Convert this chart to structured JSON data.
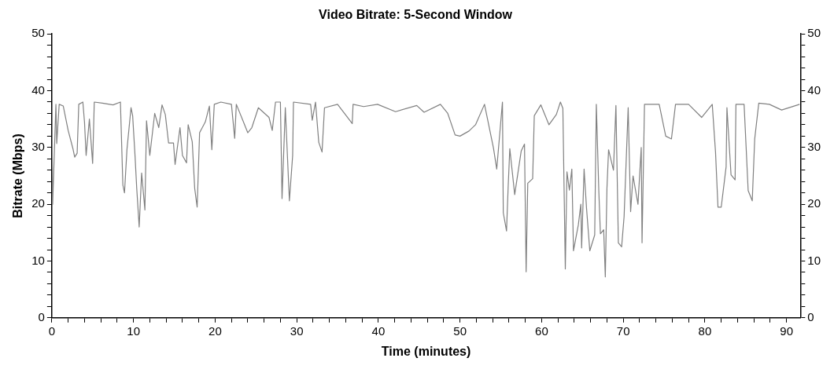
{
  "chart_data": {
    "type": "line",
    "title": "Video Bitrate: 5-Second Window",
    "xlabel": "Time (minutes)",
    "ylabel": "Bitrate (Mbps)",
    "xlim": [
      0,
      91.7
    ],
    "xticks": [
      0,
      {
        "value": 2,
        "label": null
      },
      {
        "value": 4,
        "label": null
      },
      {
        "value": 6,
        "label": null
      },
      {
        "value": 8,
        "label": null
      },
      10,
      {
        "value": 12,
        "label": null
      },
      {
        "value": 14,
        "label": null
      },
      {
        "value": 16,
        "label": null
      },
      {
        "value": 18,
        "label": null
      },
      20,
      {
        "value": 22,
        "label": null
      },
      {
        "value": 24,
        "label": null
      },
      {
        "value": 26,
        "label": null
      },
      {
        "value": 28,
        "label": null
      },
      30,
      {
        "value": 32,
        "label": null
      },
      {
        "value": 34,
        "label": null
      },
      {
        "value": 36,
        "label": null
      },
      {
        "value": 38,
        "label": null
      },
      40,
      {
        "value": 42,
        "label": null
      },
      {
        "value": 44,
        "label": null
      },
      {
        "value": 46,
        "label": null
      },
      {
        "value": 48,
        "label": null
      },
      50,
      {
        "value": 52,
        "label": null
      },
      {
        "value": 54,
        "label": null
      },
      {
        "value": 56,
        "label": null
      },
      {
        "value": 58,
        "label": null
      },
      60,
      {
        "value": 62,
        "label": null
      },
      {
        "value": 64,
        "label": null
      },
      {
        "value": 66,
        "label": null
      },
      {
        "value": 68,
        "label": null
      },
      70,
      {
        "value": 72,
        "label": null
      },
      {
        "value": 74,
        "label": null
      },
      {
        "value": 76,
        "label": null
      },
      {
        "value": 78,
        "label": null
      },
      80,
      {
        "value": 82,
        "label": null
      },
      {
        "value": 84,
        "label": null
      },
      {
        "value": 86,
        "label": null
      },
      {
        "value": 88,
        "label": null
      },
      90
    ],
    "ylim": [
      0,
      50
    ],
    "yticks": [
      0,
      {
        "value": 2,
        "label": null
      },
      {
        "value": 4,
        "label": null
      },
      {
        "value": 6,
        "label": null
      },
      {
        "value": 8,
        "label": null
      },
      10,
      {
        "value": 12,
        "label": null
      },
      {
        "value": 14,
        "label": null
      },
      {
        "value": 16,
        "label": null
      },
      {
        "value": 18,
        "label": null
      },
      20,
      {
        "value": 22,
        "label": null
      },
      {
        "value": 24,
        "label": null
      },
      {
        "value": 26,
        "label": null
      },
      {
        "value": 28,
        "label": null
      },
      30,
      {
        "value": 32,
        "label": null
      },
      {
        "value": 34,
        "label": null
      },
      {
        "value": 36,
        "label": null
      },
      {
        "value": 38,
        "label": null
      },
      40,
      {
        "value": 42,
        "label": null
      },
      {
        "value": 44,
        "label": null
      },
      {
        "value": 46,
        "label": null
      },
      {
        "value": 48,
        "label": null
      },
      50
    ],
    "y2lim": [
      0,
      50
    ],
    "y2ticks": [
      0,
      {
        "value": 2,
        "label": null
      },
      {
        "value": 4,
        "label": null
      },
      {
        "value": 6,
        "label": null
      },
      {
        "value": 8,
        "label": null
      },
      10,
      {
        "value": 12,
        "label": null
      },
      {
        "value": 14,
        "label": null
      },
      {
        "value": 16,
        "label": null
      },
      {
        "value": 18,
        "label": null
      },
      20,
      {
        "value": 22,
        "label": null
      },
      {
        "value": 24,
        "label": null
      },
      {
        "value": 26,
        "label": null
      },
      {
        "value": 28,
        "label": null
      },
      30,
      {
        "value": 32,
        "label": null
      },
      {
        "value": 34,
        "label": null
      },
      {
        "value": 36,
        "label": null
      },
      {
        "value": 38,
        "label": null
      },
      40,
      {
        "value": 42,
        "label": null
      },
      {
        "value": 44,
        "label": null
      },
      {
        "value": 46,
        "label": null
      },
      {
        "value": 48,
        "label": null
      },
      50
    ],
    "grid": false,
    "legend": false,
    "marker": "none",
    "line_style": "solid",
    "series": [
      {
        "color": "#808080",
        "x": [
          0,
          0.1,
          0.5,
          0.6,
          0.9,
          1.4,
          2.0,
          2.6,
          2.8,
          3.1,
          3.3,
          3.8,
          4.0,
          4.2,
          4.6,
          5.0,
          5.2,
          6.2,
          7.5,
          8.4,
          8.7,
          8.9,
          9.2,
          9.7,
          9.9,
          10.2,
          10.4,
          10.7,
          11.0,
          11.4,
          11.6,
          12.0,
          12.6,
          13.1,
          13.5,
          13.9,
          14.3,
          14.9,
          15.1,
          15.7,
          16.0,
          16.5,
          16.7,
          17.2,
          17.5,
          17.8,
          18.1,
          18.8,
          19.3,
          19.6,
          19.9,
          20.7,
          22.0,
          22.4,
          22.6,
          23.5,
          24.0,
          24.5,
          25.3,
          26.6,
          27.0,
          27.4,
          28.0,
          28.2,
          28.6,
          29.1,
          29.5,
          29.6,
          31.7,
          31.9,
          32.3,
          32.7,
          33.1,
          33.4,
          35.0,
          36.8,
          36.9,
          38.2,
          39.9,
          42.1,
          44.7,
          45.6,
          47.6,
          48.5,
          49.4,
          50.0,
          51.1,
          51.9,
          53.0,
          54.1,
          54.5,
          55.2,
          55.3,
          55.7,
          55.9,
          56.1,
          56.7,
          57.5,
          57.9,
          58.1,
          58.3,
          58.9,
          59.1,
          59.9,
          60.9,
          61.8,
          62.3,
          62.6,
          62.9,
          63.1,
          63.4,
          63.7,
          63.9,
          64.5,
          64.8,
          64.9,
          65.2,
          65.5,
          65.9,
          66.5,
          66.7,
          67.0,
          67.2,
          67.6,
          67.8,
          68.0,
          68.2,
          68.8,
          69.1,
          69.4,
          69.8,
          70.1,
          70.6,
          70.9,
          71.2,
          71.8,
          72.2,
          72.3,
          72.6,
          74.4,
          75.2,
          75.9,
          76.4,
          78.0,
          79.6,
          80.9,
          81.3,
          81.6,
          82.0,
          82.6,
          82.7,
          83.2,
          83.7,
          83.8,
          84.8,
          85.3,
          85.8,
          86.1,
          86.6,
          87.9,
          89.4,
          91.6
        ],
        "values": [
          37.5,
          20,
          37.6,
          30.7,
          37.6,
          37.3,
          33,
          29.7,
          28.3,
          29,
          37.6,
          38,
          34.5,
          28.6,
          35,
          27.2,
          38,
          37.8,
          37.5,
          38,
          23.4,
          22,
          29.6,
          37,
          35.6,
          28.3,
          22.8,
          16,
          25.5,
          19,
          34.7,
          28.6,
          36,
          33.5,
          37.5,
          35.8,
          30.8,
          30.8,
          27,
          33.5,
          28.6,
          27.3,
          34,
          31,
          22.8,
          19.5,
          32.6,
          34.5,
          37.3,
          29.6,
          37.6,
          38,
          37.6,
          31.6,
          37.6,
          34.4,
          32.6,
          33.5,
          37,
          35.3,
          33,
          38,
          38,
          21,
          37,
          20.6,
          28.6,
          38,
          37.6,
          34.8,
          38,
          30.9,
          29.2,
          37,
          37.6,
          34.2,
          37.6,
          37.2,
          37.6,
          36.3,
          37.4,
          36.2,
          37.6,
          36,
          32.2,
          32,
          32.9,
          34,
          37.6,
          29.9,
          26.2,
          38,
          18.5,
          15.3,
          23.1,
          29.8,
          21.7,
          29.4,
          30.6,
          8.1,
          23.7,
          24.5,
          35.6,
          37.5,
          34,
          35.8,
          38,
          36.9,
          8.6,
          25.7,
          22.5,
          26.2,
          11.8,
          16.4,
          20,
          12.3,
          26.2,
          19.3,
          11.8,
          14.6,
          37.6,
          22.5,
          14.8,
          15.5,
          7.2,
          22.8,
          29.6,
          26,
          37.4,
          13.2,
          12.5,
          17.8,
          37,
          18.7,
          25,
          20,
          30,
          13.2,
          37.6,
          37.6,
          32,
          31.5,
          37.6,
          37.6,
          35.3,
          37.6,
          29.2,
          19.5,
          19.5,
          26.6,
          37,
          25.2,
          24.3,
          37.6,
          37.6,
          22.4,
          20.6,
          31.5,
          37.8,
          37.6,
          36.6,
          37.6
        ]
      }
    ]
  }
}
